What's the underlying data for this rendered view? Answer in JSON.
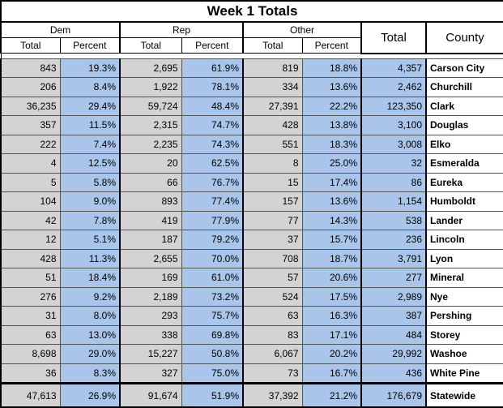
{
  "title": "Week 1 Totals",
  "groups": {
    "dem": "Dem",
    "rep": "Rep",
    "other": "Other",
    "total": "Total",
    "county": "County"
  },
  "subheaders": {
    "total": "Total",
    "percent": "Percent"
  },
  "rows": [
    {
      "dem_total": "843",
      "dem_pct": "19.3%",
      "rep_total": "2,695",
      "rep_pct": "61.9%",
      "oth_total": "819",
      "oth_pct": "18.8%",
      "total": "4,357",
      "county": "Carson City"
    },
    {
      "dem_total": "206",
      "dem_pct": "8.4%",
      "rep_total": "1,922",
      "rep_pct": "78.1%",
      "oth_total": "334",
      "oth_pct": "13.6%",
      "total": "2,462",
      "county": "Churchill"
    },
    {
      "dem_total": "36,235",
      "dem_pct": "29.4%",
      "rep_total": "59,724",
      "rep_pct": "48.4%",
      "oth_total": "27,391",
      "oth_pct": "22.2%",
      "total": "123,350",
      "county": "Clark"
    },
    {
      "dem_total": "357",
      "dem_pct": "11.5%",
      "rep_total": "2,315",
      "rep_pct": "74.7%",
      "oth_total": "428",
      "oth_pct": "13.8%",
      "total": "3,100",
      "county": "Douglas"
    },
    {
      "dem_total": "222",
      "dem_pct": "7.4%",
      "rep_total": "2,235",
      "rep_pct": "74.3%",
      "oth_total": "551",
      "oth_pct": "18.3%",
      "total": "3,008",
      "county": "Elko"
    },
    {
      "dem_total": "4",
      "dem_pct": "12.5%",
      "rep_total": "20",
      "rep_pct": "62.5%",
      "oth_total": "8",
      "oth_pct": "25.0%",
      "total": "32",
      "county": "Esmeralda"
    },
    {
      "dem_total": "5",
      "dem_pct": "5.8%",
      "rep_total": "66",
      "rep_pct": "76.7%",
      "oth_total": "15",
      "oth_pct": "17.4%",
      "total": "86",
      "county": "Eureka"
    },
    {
      "dem_total": "104",
      "dem_pct": "9.0%",
      "rep_total": "893",
      "rep_pct": "77.4%",
      "oth_total": "157",
      "oth_pct": "13.6%",
      "total": "1,154",
      "county": "Humboldt"
    },
    {
      "dem_total": "42",
      "dem_pct": "7.8%",
      "rep_total": "419",
      "rep_pct": "77.9%",
      "oth_total": "77",
      "oth_pct": "14.3%",
      "total": "538",
      "county": "Lander"
    },
    {
      "dem_total": "12",
      "dem_pct": "5.1%",
      "rep_total": "187",
      "rep_pct": "79.2%",
      "oth_total": "37",
      "oth_pct": "15.7%",
      "total": "236",
      "county": "Lincoln"
    },
    {
      "dem_total": "428",
      "dem_pct": "11.3%",
      "rep_total": "2,655",
      "rep_pct": "70.0%",
      "oth_total": "708",
      "oth_pct": "18.7%",
      "total": "3,791",
      "county": "Lyon"
    },
    {
      "dem_total": "51",
      "dem_pct": "18.4%",
      "rep_total": "169",
      "rep_pct": "61.0%",
      "oth_total": "57",
      "oth_pct": "20.6%",
      "total": "277",
      "county": "Mineral"
    },
    {
      "dem_total": "276",
      "dem_pct": "9.2%",
      "rep_total": "2,189",
      "rep_pct": "73.2%",
      "oth_total": "524",
      "oth_pct": "17.5%",
      "total": "2,989",
      "county": "Nye"
    },
    {
      "dem_total": "31",
      "dem_pct": "8.0%",
      "rep_total": "293",
      "rep_pct": "75.7%",
      "oth_total": "63",
      "oth_pct": "16.3%",
      "total": "387",
      "county": "Pershing"
    },
    {
      "dem_total": "63",
      "dem_pct": "13.0%",
      "rep_total": "338",
      "rep_pct": "69.8%",
      "oth_total": "83",
      "oth_pct": "17.1%",
      "total": "484",
      "county": "Storey"
    },
    {
      "dem_total": "8,698",
      "dem_pct": "29.0%",
      "rep_total": "15,227",
      "rep_pct": "50.8%",
      "oth_total": "6,067",
      "oth_pct": "20.2%",
      "total": "29,992",
      "county": "Washoe"
    },
    {
      "dem_total": "36",
      "dem_pct": "8.3%",
      "rep_total": "327",
      "rep_pct": "75.0%",
      "oth_total": "73",
      "oth_pct": "16.7%",
      "total": "436",
      "county": "White Pine"
    }
  ],
  "statewide": {
    "dem_total": "47,613",
    "dem_pct": "26.9%",
    "rep_total": "91,674",
    "rep_pct": "51.9%",
    "oth_total": "37,392",
    "oth_pct": "21.2%",
    "total": "176,679",
    "county": "Statewide"
  },
  "colors": {
    "gray_cell": "#d3d3d3",
    "blue_cell": "#a9c6ea",
    "border": "#000000"
  }
}
